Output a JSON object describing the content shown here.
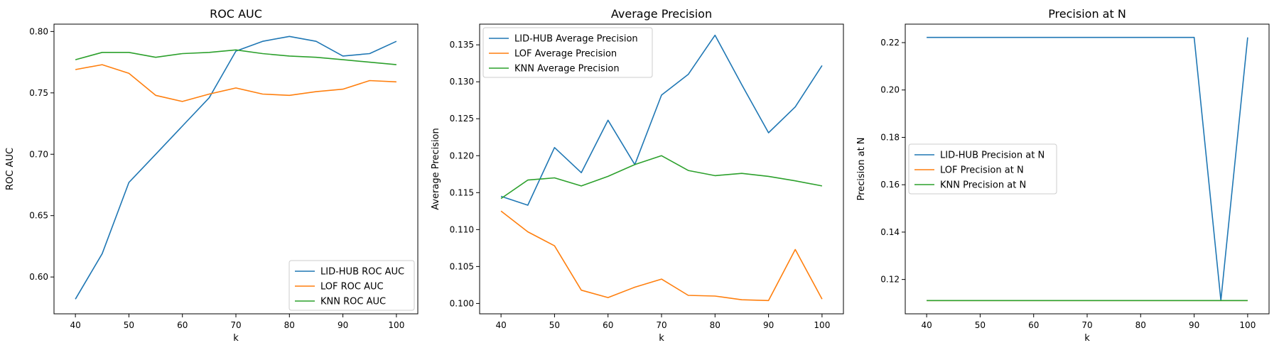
{
  "colors": {
    "series_1": "#1f77b4",
    "series_2": "#ff7f0e",
    "series_3": "#2ca02c",
    "legend_border": "#cccccc"
  },
  "chart_data": [
    {
      "type": "line",
      "title": "ROC AUC",
      "xlabel": "k",
      "ylabel": "ROC AUC",
      "xlim": [
        36,
        104
      ],
      "ylim": [
        0.57,
        0.806
      ],
      "xticks": [
        40,
        50,
        60,
        70,
        80,
        90,
        100
      ],
      "yticks": [
        0.6,
        0.65,
        0.7,
        0.75,
        0.8
      ],
      "ytick_labels": [
        "0.60",
        "0.65",
        "0.70",
        "0.75",
        "0.80"
      ],
      "legend_position": "lower-right",
      "x": [
        40,
        45,
        50,
        55,
        60,
        65,
        70,
        75,
        80,
        85,
        90,
        95,
        100
      ],
      "series": [
        {
          "name": "LID-HUB ROC AUC",
          "values": [
            0.582,
            0.619,
            0.677,
            0.7,
            0.723,
            0.746,
            0.784,
            0.792,
            0.796,
            0.792,
            0.78,
            0.782,
            0.792
          ]
        },
        {
          "name": "LOF ROC AUC",
          "values": [
            0.769,
            0.773,
            0.766,
            0.748,
            0.743,
            0.749,
            0.754,
            0.749,
            0.748,
            0.751,
            0.753,
            0.76,
            0.759
          ]
        },
        {
          "name": "KNN ROC AUC",
          "values": [
            0.777,
            0.783,
            0.783,
            0.779,
            0.782,
            0.783,
            0.785,
            0.782,
            0.78,
            0.779,
            0.777,
            0.775,
            0.773
          ]
        }
      ]
    },
    {
      "type": "line",
      "title": "Average Precision",
      "xlabel": "k",
      "ylabel": "Average Precision",
      "xlim": [
        36,
        104
      ],
      "ylim": [
        0.0986,
        0.1378
      ],
      "xticks": [
        40,
        50,
        60,
        70,
        80,
        90,
        100
      ],
      "yticks": [
        0.1,
        0.105,
        0.11,
        0.115,
        0.12,
        0.125,
        0.13,
        0.135
      ],
      "ytick_labels": [
        "0.100",
        "0.105",
        "0.110",
        "0.115",
        "0.120",
        "0.125",
        "0.130",
        "0.135"
      ],
      "legend_position": "top-left",
      "x": [
        40,
        45,
        50,
        55,
        60,
        65,
        70,
        75,
        80,
        85,
        90,
        95,
        100
      ],
      "series": [
        {
          "name": "LID-HUB Average Precision",
          "values": [
            0.1145,
            0.1133,
            0.1211,
            0.1177,
            0.1248,
            0.1188,
            0.1282,
            0.131,
            0.1363,
            0.1296,
            0.1231,
            0.1266,
            0.1322
          ]
        },
        {
          "name": "LOF Average Precision",
          "values": [
            0.1125,
            0.1097,
            0.1078,
            0.1018,
            0.1008,
            0.1022,
            0.1033,
            0.1011,
            0.101,
            0.1005,
            0.1004,
            0.1073,
            0.1006
          ]
        },
        {
          "name": "KNN Average Precision",
          "values": [
            0.1142,
            0.1167,
            0.117,
            0.1159,
            0.1172,
            0.1188,
            0.12,
            0.118,
            0.1173,
            0.1176,
            0.1172,
            0.1166,
            0.1159
          ]
        }
      ]
    },
    {
      "type": "line",
      "title": "Precision at N",
      "xlabel": "k",
      "ylabel": "Precision at N",
      "xlim": [
        36,
        104
      ],
      "ylim": [
        0.1055,
        0.2278
      ],
      "xticks": [
        40,
        50,
        60,
        70,
        80,
        90,
        100
      ],
      "yticks": [
        0.12,
        0.14,
        0.16,
        0.18,
        0.2,
        0.22
      ],
      "ytick_labels": [
        "0.12",
        "0.14",
        "0.16",
        "0.18",
        "0.20",
        "0.22"
      ],
      "legend_position": "center-left",
      "x": [
        40,
        45,
        50,
        55,
        60,
        65,
        70,
        75,
        80,
        85,
        90,
        95,
        100
      ],
      "series": [
        {
          "name": "LID-HUB Precision at N",
          "values": [
            0.2222,
            0.2222,
            0.2222,
            0.2222,
            0.2222,
            0.2222,
            0.2222,
            0.2222,
            0.2222,
            0.2222,
            0.2222,
            0.1111,
            0.2222
          ]
        },
        {
          "name": "LOF Precision at N",
          "values": [
            0.1111,
            0.1111,
            0.1111,
            0.1111,
            0.1111,
            0.1111,
            0.1111,
            0.1111,
            0.1111,
            0.1111,
            0.1111,
            0.1111,
            0.1111
          ]
        },
        {
          "name": "KNN Precision at N",
          "values": [
            0.1111,
            0.1111,
            0.1111,
            0.1111,
            0.1111,
            0.1111,
            0.1111,
            0.1111,
            0.1111,
            0.1111,
            0.1111,
            0.1111,
            0.1111
          ]
        }
      ]
    }
  ]
}
